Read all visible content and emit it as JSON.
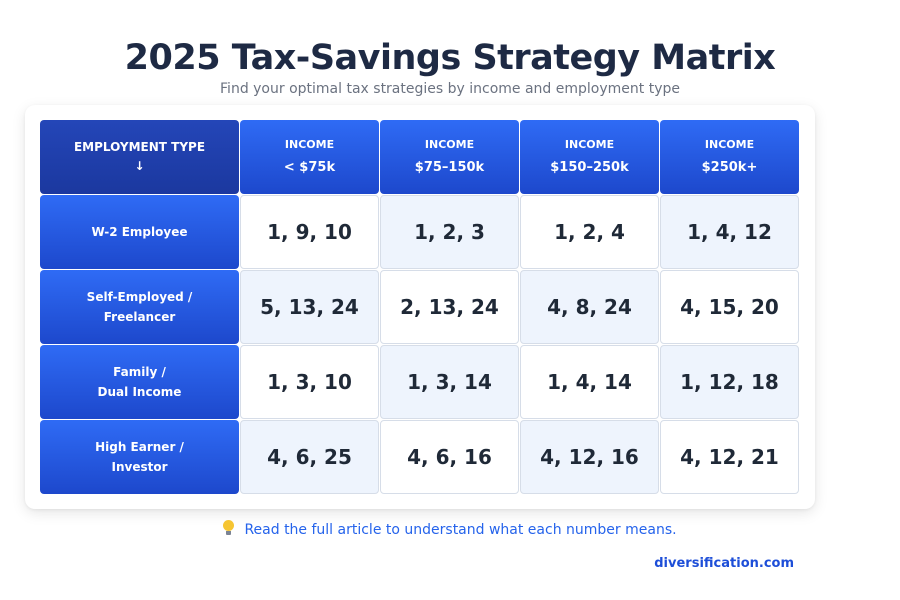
{
  "title": "2025 Tax-Savings Strategy Matrix",
  "subtitle": "Find your optimal tax strategies by income and employment type",
  "matrix": {
    "corner": {
      "label": "EMPLOYMENT TYPE",
      "arrow": "↓"
    },
    "columns": [
      {
        "line1": "INCOME",
        "line2": "< $75k"
      },
      {
        "line1": "INCOME",
        "line2": "$75–150k"
      },
      {
        "line1": "INCOME",
        "line2": "$150–250k"
      },
      {
        "line1": "INCOME",
        "line2": "$250k+"
      }
    ],
    "rows": [
      {
        "line1": "W-2 Employee",
        "line2": "",
        "cells": [
          "1, 9, 10",
          "1, 2, 3",
          "1, 2, 4",
          "1, 4, 12"
        ]
      },
      {
        "line1": "Self-Employed /",
        "line2": "Freelancer",
        "cells": [
          "5, 13, 24",
          "2, 13, 24",
          "4, 8, 24",
          "4, 15, 20"
        ]
      },
      {
        "line1": "Family /",
        "line2": "Dual Income",
        "cells": [
          "1, 3, 10",
          "1, 3, 14",
          "1, 4, 14",
          "1, 12, 18"
        ]
      },
      {
        "line1": "High Earner /",
        "line2": "Investor",
        "cells": [
          "4, 6, 25",
          "4, 6, 16",
          "4, 12, 16",
          "4, 12, 21"
        ]
      }
    ]
  },
  "note": {
    "icon": "lightbulb-icon",
    "text": "Read the full article to understand what each number means."
  },
  "brand": "diversification.com",
  "colors": {
    "title": "#1e2a44",
    "header_blue": "#2f6bf5",
    "header_dark": "#1b389f",
    "cell_tint": "#eef4fd",
    "link": "#2563eb"
  }
}
